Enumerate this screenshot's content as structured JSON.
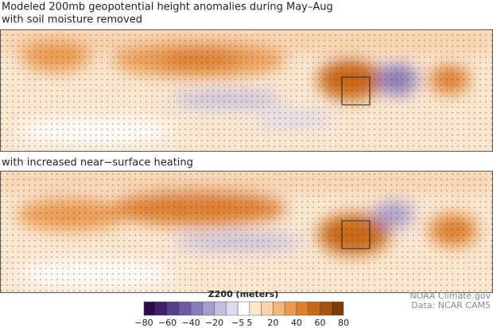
{
  "title": "Modeled 200mb geopotential height anomalies during May–Aug",
  "panels": [
    {
      "label": "with soil moisture removed"
    },
    {
      "label": "with increased near−surface heating"
    }
  ],
  "colorbar": {
    "label": "Z200 (meters)",
    "levels": [
      -80,
      -70,
      -60,
      -50,
      -40,
      -30,
      -20,
      -10,
      -5,
      5,
      10,
      20,
      30,
      40,
      50,
      60,
      70,
      80
    ],
    "colors": [
      "#2d0a4a",
      "#3f1f6e",
      "#56408c",
      "#6f5ba5",
      "#8a7cba",
      "#a79ccc",
      "#c3bddf",
      "#ddd9ee",
      "#ffffff",
      "#fbe7d0",
      "#f8d2aa",
      "#f3b77c",
      "#eb9b51",
      "#de7f2e",
      "#c96818",
      "#a8520f",
      "#7c3a08"
    ],
    "ticks": [
      {
        "value": -80,
        "label": "−80"
      },
      {
        "value": -60,
        "label": "−60"
      },
      {
        "value": -40,
        "label": "−40"
      },
      {
        "value": -20,
        "label": "−20"
      },
      {
        "value": -5,
        "label": "−5"
      },
      5,
      20,
      40,
      60,
      80
    ]
  },
  "credits": [
    "NOAA Climate.gov",
    "Data: NCAR CAM5"
  ]
}
